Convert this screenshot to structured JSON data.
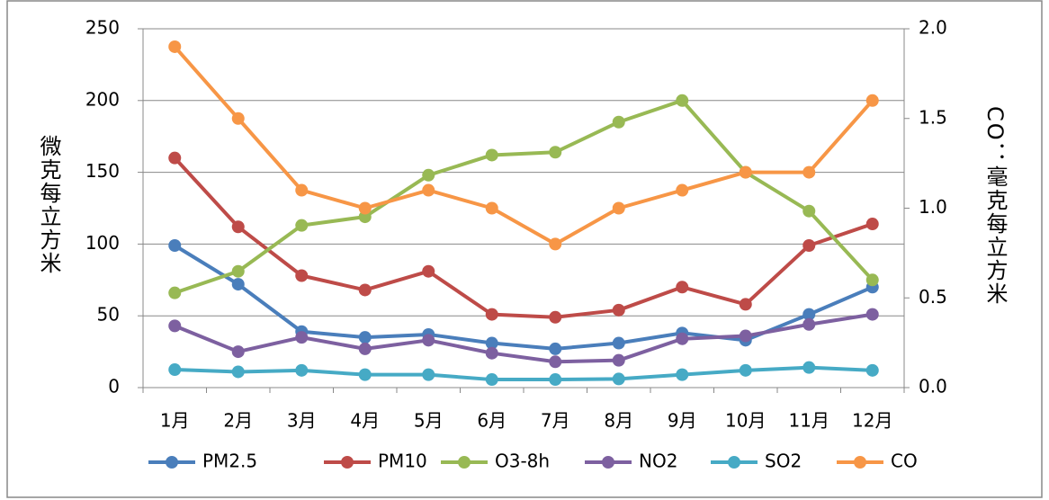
{
  "chart_data": {
    "type": "line",
    "categories": [
      "1月",
      "2月",
      "3月",
      "4月",
      "5月",
      "6月",
      "7月",
      "8月",
      "9月",
      "10月",
      "11月",
      "12月"
    ],
    "series": [
      {
        "name": "PM2.5",
        "color": "#4a7ebb",
        "values": [
          99,
          72,
          39,
          35,
          37,
          31,
          27,
          31,
          38,
          33,
          51,
          70
        ]
      },
      {
        "name": "PM10",
        "color": "#be4b48",
        "values": [
          160,
          112,
          78,
          68,
          81,
          51,
          49,
          54,
          70,
          58,
          99,
          114
        ]
      },
      {
        "name": "O3-8h",
        "color": "#98b954",
        "values": [
          66,
          81,
          113,
          119,
          148,
          162,
          164,
          185,
          200,
          150,
          123,
          75
        ]
      },
      {
        "name": "NO2",
        "color": "#7d60a0",
        "values": [
          43,
          25,
          35,
          27,
          33,
          24,
          18,
          19,
          34,
          36,
          44,
          51
        ]
      },
      {
        "name": "SO2",
        "color": "#46aac5",
        "values": [
          12.5,
          11,
          12,
          9,
          9,
          5.6,
          5.6,
          6,
          9,
          12,
          14,
          12
        ]
      },
      {
        "name": "CO",
        "color": "#f79646",
        "axis": "y2",
        "values": [
          1.9,
          1.5,
          1.1,
          1.0,
          1.1,
          1.0,
          0.8,
          1.0,
          1.1,
          1.2,
          1.2,
          1.6
        ]
      }
    ],
    "ylabel": "微克每立方米",
    "y2label": "CO：毫克每立方米",
    "ylim": [
      0,
      250
    ],
    "yticks": [
      0,
      50,
      100,
      150,
      200,
      250
    ],
    "y2lim": [
      0,
      2
    ],
    "y2ticks": [
      {
        "value": 0,
        "label": "0.0"
      },
      {
        "value": 0.5,
        "label": "0.5"
      },
      {
        "value": 1,
        "label": "1.0"
      },
      {
        "value": 1.5,
        "label": "1.5"
      },
      {
        "value": 2,
        "label": "2.0"
      }
    ],
    "grid": true,
    "legend": "bottom"
  }
}
